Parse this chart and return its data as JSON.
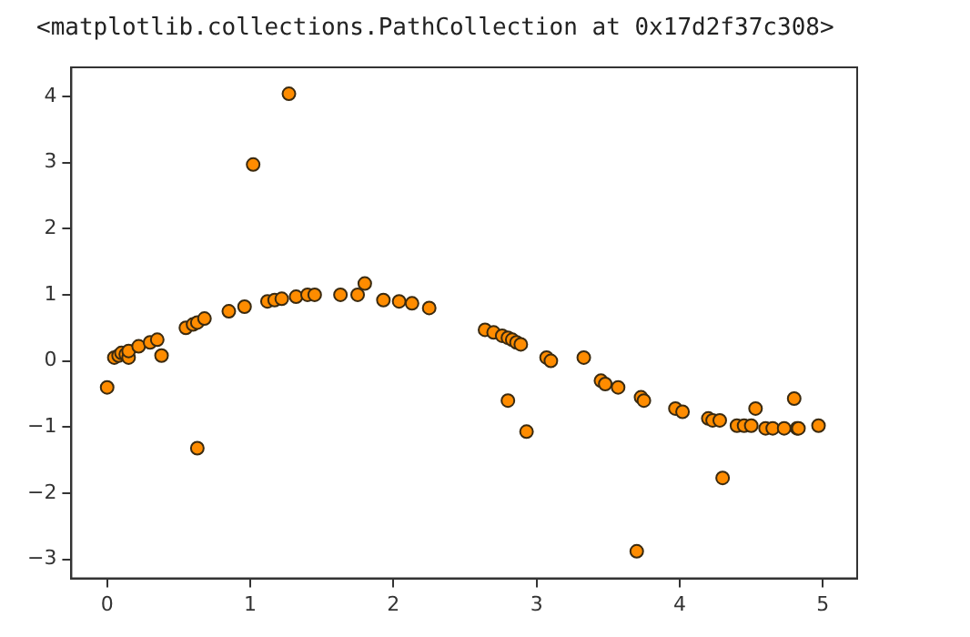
{
  "chart_data": {
    "type": "scatter",
    "annotations": [
      "<matplotlib.collections.PathCollection at 0x17d2f37c308>"
    ],
    "x": [
      0.0,
      0.05,
      0.08,
      0.1,
      0.13,
      0.15,
      0.15,
      0.22,
      0.3,
      0.35,
      0.38,
      0.55,
      0.6,
      0.63,
      0.63,
      0.68,
      0.85,
      0.96,
      1.02,
      1.12,
      1.17,
      1.22,
      1.27,
      1.32,
      1.4,
      1.45,
      1.63,
      1.75,
      1.8,
      1.93,
      2.04,
      2.13,
      2.25,
      2.64,
      2.7,
      2.76,
      2.8,
      2.83,
      2.86,
      2.89,
      2.8,
      2.93,
      3.07,
      3.1,
      3.33,
      3.45,
      3.48,
      3.57,
      3.73,
      3.75,
      3.97,
      4.02,
      4.2,
      4.23,
      4.28,
      4.3,
      4.4,
      4.45,
      4.5,
      4.53,
      4.6,
      4.65,
      4.73,
      4.8,
      4.82,
      4.83,
      4.97,
      3.7
    ],
    "series": [
      {
        "color": "#ff8c00",
        "values": [
          -0.4,
          0.05,
          0.08,
          0.12,
          0.1,
          0.05,
          0.15,
          0.22,
          0.28,
          0.32,
          0.08,
          0.5,
          0.55,
          0.58,
          -1.32,
          0.64,
          0.75,
          0.82,
          2.97,
          0.9,
          0.92,
          0.94,
          4.04,
          0.97,
          1.0,
          1.0,
          1.0,
          1.0,
          1.17,
          0.92,
          0.9,
          0.87,
          0.8,
          0.47,
          0.43,
          0.38,
          0.35,
          0.32,
          0.28,
          0.25,
          -0.6,
          -1.07,
          0.05,
          0.0,
          0.05,
          -0.3,
          -0.35,
          -0.4,
          -0.55,
          -0.6,
          -0.72,
          -0.77,
          -0.87,
          -0.9,
          -0.9,
          -1.77,
          -0.98,
          -0.98,
          -0.98,
          -0.72,
          -1.02,
          -1.02,
          -1.02,
          -0.57,
          -1.02,
          -1.02,
          -0.98,
          -2.88
        ]
      }
    ],
    "xlim": [
      -0.25,
      5.24
    ],
    "ylim": [
      -3.29,
      4.44
    ],
    "xticks": [
      0,
      1,
      2,
      3,
      4,
      5
    ],
    "yticks": [
      -3,
      -2,
      -1,
      0,
      1,
      2,
      3,
      4
    ],
    "grid": false,
    "legend": false,
    "marker": "circle"
  }
}
